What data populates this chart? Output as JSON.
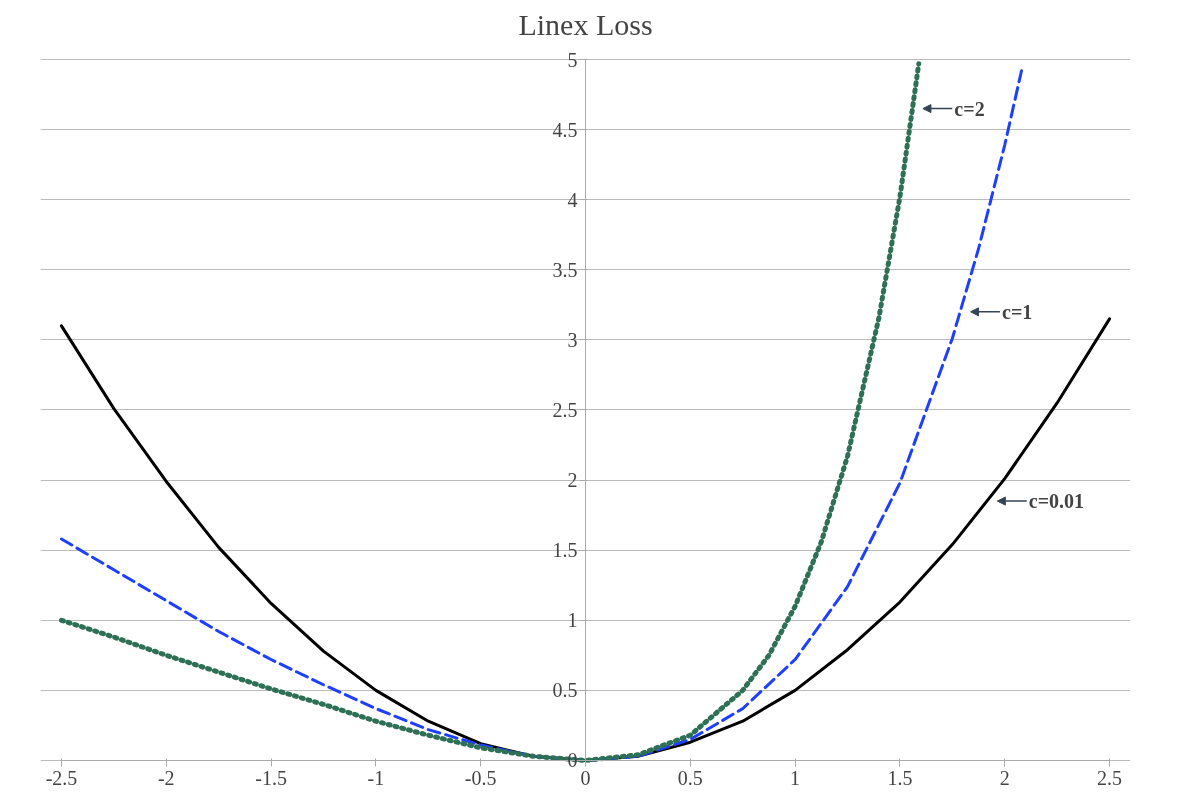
{
  "chart_data": {
    "type": "line",
    "title": "Linex Loss",
    "xlim": [
      -2.5,
      2.5
    ],
    "ylim": [
      0,
      5
    ],
    "xticks": [
      -2.5,
      -2,
      -1.5,
      -1,
      -0.5,
      0,
      0.5,
      1,
      1.5,
      2,
      2.5
    ],
    "yticks": [
      0,
      0.5,
      1,
      1.5,
      2,
      2.5,
      3,
      3.5,
      4,
      4.5,
      5
    ],
    "grid": "y",
    "marker": "none",
    "series": [
      {
        "name": "c=0.01",
        "color": "#000000",
        "line_style": "solid",
        "x": [
          -2.5,
          -2.25,
          -2,
          -1.75,
          -1.5,
          -1.25,
          -1,
          -0.75,
          -0.5,
          -0.25,
          0,
          0.25,
          0.5,
          0.75,
          1,
          1.25,
          1.5,
          1.75,
          2,
          2.25,
          2.5
        ],
        "values": [
          3.1,
          2.51,
          1.99,
          1.52,
          1.12,
          0.78,
          0.5,
          0.28,
          0.12,
          0.03,
          0,
          0.03,
          0.13,
          0.28,
          0.5,
          0.79,
          1.13,
          1.54,
          2.01,
          2.55,
          3.15
        ]
      },
      {
        "name": "c=1",
        "color": "#1f3fff",
        "line_style": "dashed",
        "x": [
          -2.5,
          -2.25,
          -2,
          -1.75,
          -1.5,
          -1.25,
          -1,
          -0.75,
          -0.5,
          -0.25,
          0,
          0.25,
          0.5,
          0.75,
          1,
          1.25,
          1.5,
          1.75,
          1.875,
          2,
          2.08
        ],
        "values": [
          1.58,
          1.36,
          1.14,
          0.92,
          0.72,
          0.54,
          0.37,
          0.22,
          0.11,
          0.03,
          0,
          0.03,
          0.15,
          0.37,
          0.72,
          1.24,
          1.98,
          3.01,
          3.65,
          4.39,
          4.92
        ]
      },
      {
        "name": "c=2",
        "color": "#2e7055",
        "line_style": "dotted",
        "x": [
          -2.5,
          -2.25,
          -2,
          -1.75,
          -1.5,
          -1.25,
          -1,
          -0.75,
          -0.5,
          -0.25,
          0,
          0.25,
          0.5,
          0.75,
          0.875,
          1,
          1.125,
          1.25,
          1.4,
          1.5,
          1.59
        ],
        "values": [
          1.0,
          0.88,
          0.75,
          0.63,
          0.51,
          0.4,
          0.28,
          0.18,
          0.09,
          0.03,
          0,
          0.04,
          0.18,
          0.5,
          0.75,
          1.1,
          1.56,
          2.17,
          3.16,
          4.02,
          4.97
        ]
      }
    ]
  }
}
